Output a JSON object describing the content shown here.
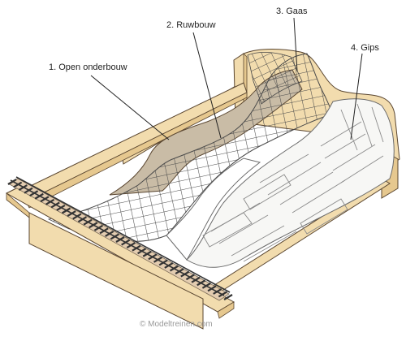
{
  "labels": {
    "open_onderbouw": "1. Open onderbouw",
    "ruwbouw": "2. Ruwbouw",
    "gaas": "3. Gaas",
    "gips": "4. Gips"
  },
  "credit": "© Modeltreinen.com",
  "colors": {
    "wood": "#f2dcae",
    "wood_dark": "#e6c88f",
    "outline": "#5a4630",
    "ruwbouw": "#c9bca6",
    "gaas_line": "#4a4a4a",
    "gips": "#f7f7f5",
    "track": "#333333",
    "ballast": "#e3ccb0",
    "background": "#ffffff"
  }
}
